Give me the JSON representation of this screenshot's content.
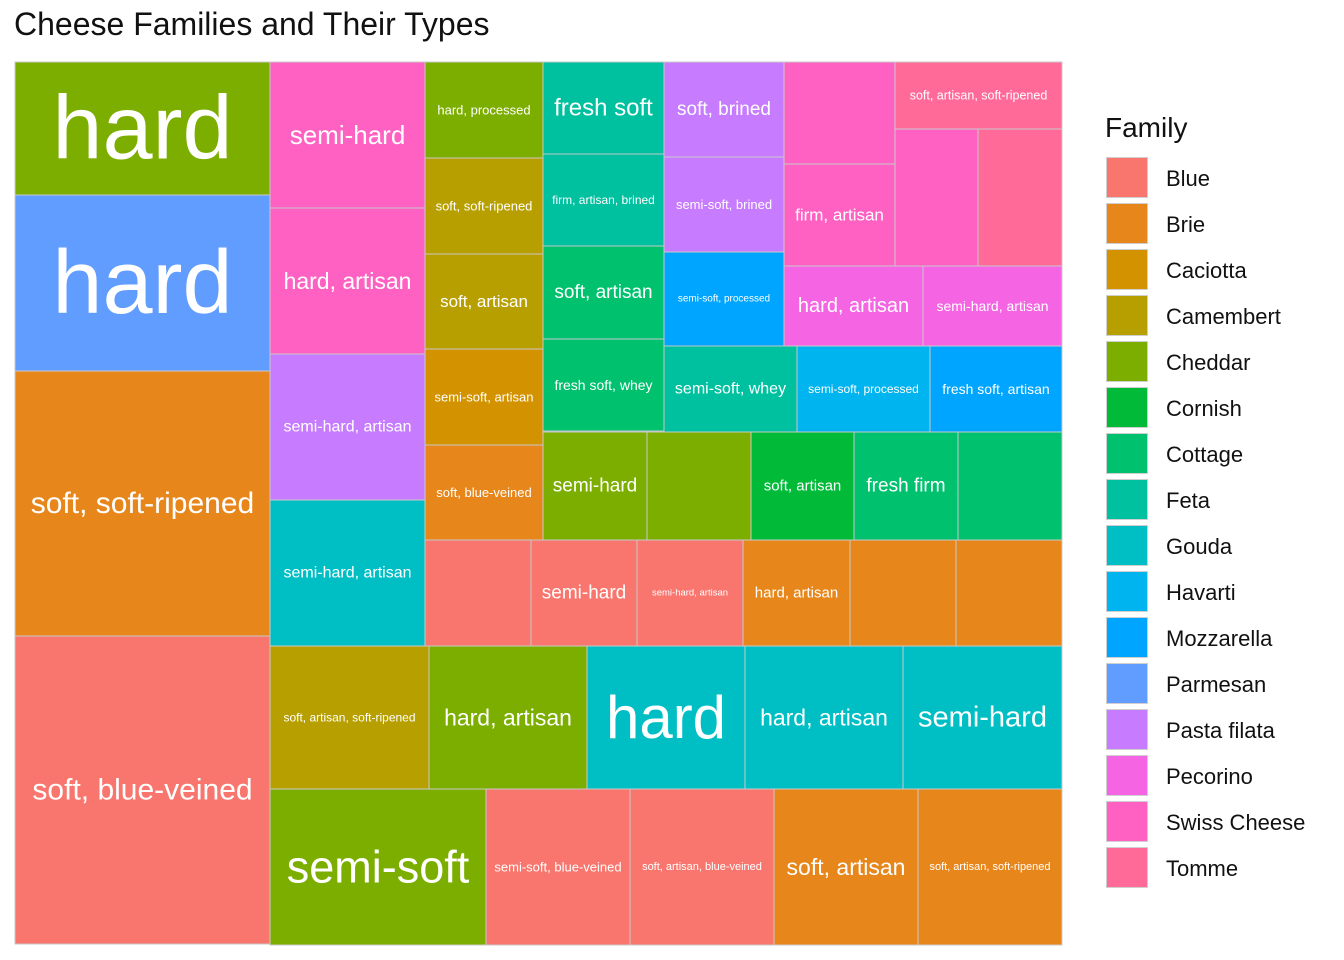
{
  "chart_data": {
    "type": "treemap",
    "title": "Cheese Families and Their Types",
    "legend_title": "Family",
    "legend_position": "right",
    "families": [
      {
        "name": "Blue",
        "color": "#F8766D"
      },
      {
        "name": "Brie",
        "color": "#E7861B"
      },
      {
        "name": "Caciotta",
        "color": "#D39200"
      },
      {
        "name": "Camembert",
        "color": "#B79F00"
      },
      {
        "name": "Cheddar",
        "color": "#7CAE00"
      },
      {
        "name": "Cornish",
        "color": "#00BA38"
      },
      {
        "name": "Cottage",
        "color": "#00C16E"
      },
      {
        "name": "Feta",
        "color": "#00C19F"
      },
      {
        "name": "Gouda",
        "color": "#00BFC4"
      },
      {
        "name": "Havarti",
        "color": "#00B4EF"
      },
      {
        "name": "Mozzarella",
        "color": "#00A5FF"
      },
      {
        "name": "Parmesan",
        "color": "#619CFF"
      },
      {
        "name": "Pasta filata",
        "color": "#C77CFF"
      },
      {
        "name": "Pecorino",
        "color": "#F564E3"
      },
      {
        "name": "Swiss Cheese",
        "color": "#FF61C3"
      },
      {
        "name": "Tomme",
        "color": "#FF6A98"
      }
    ],
    "tiles": [
      {
        "family": "Cheddar",
        "label": "hard",
        "value": 3.35
      },
      {
        "family": "Parmesan",
        "label": "hard",
        "value": 4.45
      },
      {
        "family": "Brie",
        "label": "soft, soft-ripened",
        "value": 6.7
      },
      {
        "family": "Blue",
        "label": "soft, blue-veined",
        "value": 7.9
      },
      {
        "family": "Swiss Cheese",
        "label": "semi-hard",
        "value": 2.27
      },
      {
        "family": "Swiss Cheese",
        "label": "hard, artisan",
        "value": 2.27
      },
      {
        "family": "Pasta filata",
        "label": "semi-hard, artisan",
        "value": 2.27
      },
      {
        "family": "Gouda",
        "label": "semi-hard, artisan",
        "value": 2.27
      },
      {
        "family": "Cheddar",
        "label": "hard, processed",
        "value": 1.12
      },
      {
        "family": "Camembert",
        "label": "soft, soft-ripened",
        "value": 1.12
      },
      {
        "family": "Camembert",
        "label": "soft, artisan",
        "value": 1.12
      },
      {
        "family": "Caciotta",
        "label": "semi-soft, artisan",
        "value": 1.12
      },
      {
        "family": "Brie",
        "label": "soft, blue-veined",
        "value": 1.12
      },
      {
        "family": "Feta",
        "label": "fresh soft",
        "value": 1.12
      },
      {
        "family": "Feta",
        "label": "firm, artisan, brined",
        "value": 1.12
      },
      {
        "family": "Cottage",
        "label": "soft, artisan",
        "value": 1.12
      },
      {
        "family": "Cottage",
        "label": "fresh soft, whey",
        "value": 1.12
      },
      {
        "family": "Pasta filata",
        "label": "soft, brined",
        "value": 1.12
      },
      {
        "family": "Pasta filata",
        "label": "semi-soft, brined",
        "value": 1.12
      },
      {
        "family": "Mozzarella",
        "label": "semi-soft, processed",
        "value": 1.12
      },
      {
        "family": "Swiss Cheese",
        "label": "",
        "value": 1.12
      },
      {
        "family": "Swiss Cheese",
        "label": "firm, artisan",
        "value": 1.12
      },
      {
        "family": "Tomme",
        "label": "soft, artisan, soft-ripened",
        "value": 0.52
      },
      {
        "family": "Swiss Cheese",
        "label": "",
        "value": 1.0
      },
      {
        "family": "Tomme",
        "label": "",
        "value": 1.0
      },
      {
        "family": "Pecorino",
        "label": "hard, artisan",
        "value": 1.0
      },
      {
        "family": "Pecorino",
        "label": "semi-hard, artisan",
        "value": 1.0
      },
      {
        "family": "Feta",
        "label": "semi-soft, whey",
        "value": 1.0
      },
      {
        "family": "Havarti",
        "label": "semi-soft, processed",
        "value": 1.0
      },
      {
        "family": "Mozzarella",
        "label": "fresh soft, artisan",
        "value": 1.0
      },
      {
        "family": "Cheddar",
        "label": "semi-hard",
        "value": 1.0
      },
      {
        "family": "Cheddar",
        "label": "",
        "value": 1.0
      },
      {
        "family": "Cornish",
        "label": "soft, artisan",
        "value": 1.0
      },
      {
        "family": "Cottage",
        "label": "fresh firm",
        "value": 1.0
      },
      {
        "family": "Cottage",
        "label": "",
        "value": 1.0
      },
      {
        "family": "Blue",
        "label": "",
        "value": 1.0
      },
      {
        "family": "Blue",
        "label": "semi-hard",
        "value": 1.0
      },
      {
        "family": "Blue",
        "label": "semi-hard, artisan",
        "value": 1.0
      },
      {
        "family": "Brie",
        "label": "hard, artisan",
        "value": 1.0
      },
      {
        "family": "Brie",
        "label": "",
        "value": 1.0
      },
      {
        "family": "Brie",
        "label": "",
        "value": 1.0
      },
      {
        "family": "Camembert",
        "label": "soft, artisan, soft-ripened",
        "value": 1.5
      },
      {
        "family": "Cheddar",
        "label": "hard, artisan",
        "value": 1.5
      },
      {
        "family": "Gouda",
        "label": "hard",
        "value": 1.5
      },
      {
        "family": "Gouda",
        "label": "hard, artisan",
        "value": 1.5
      },
      {
        "family": "Gouda",
        "label": "semi-hard",
        "value": 1.5
      },
      {
        "family": "Cheddar",
        "label": "semi-soft",
        "value": 2.0
      },
      {
        "family": "Blue",
        "label": "semi-soft, blue-veined",
        "value": 1.33
      },
      {
        "family": "Blue",
        "label": "soft, artisan, blue-veined",
        "value": 1.33
      },
      {
        "family": "Brie",
        "label": "soft, artisan",
        "value": 1.33
      },
      {
        "family": "Brie",
        "label": "soft, artisan, soft-ripened",
        "value": 1.33
      }
    ]
  }
}
